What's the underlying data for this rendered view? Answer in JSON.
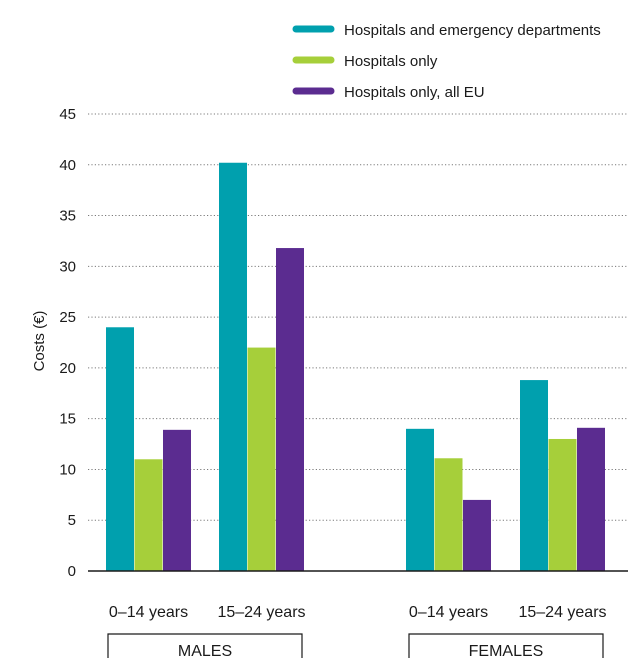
{
  "chart_data": {
    "type": "bar",
    "title": "",
    "xlabel": "",
    "ylabel": "Costs (€)",
    "ylim": [
      0,
      45
    ],
    "yticks": [
      0,
      5,
      10,
      15,
      20,
      25,
      30,
      35,
      40,
      45
    ],
    "grid": "dotted horizontal",
    "legend_position": "top-right",
    "groups": [
      {
        "label": "MALES",
        "categories": [
          "0–14 years",
          "15–24 years"
        ]
      },
      {
        "label": "FEMALES",
        "categories": [
          "0–14 years",
          "15–24 years"
        ]
      }
    ],
    "categories": [
      "0–14 years",
      "15–24 years",
      "0–14 years",
      "15–24 years"
    ],
    "series": [
      {
        "name": "Hospitals and emergency departments",
        "color": "#00a0ae",
        "values": [
          24,
          40.2,
          14,
          18.8
        ]
      },
      {
        "name": "Hospitals only",
        "color": "#a6cf3a",
        "values": [
          11,
          22,
          11.1,
          13
        ]
      },
      {
        "name": "Hospitals only, all EU",
        "color": "#5b2c90",
        "values": [
          13.9,
          31.8,
          7,
          14.1
        ]
      }
    ]
  }
}
